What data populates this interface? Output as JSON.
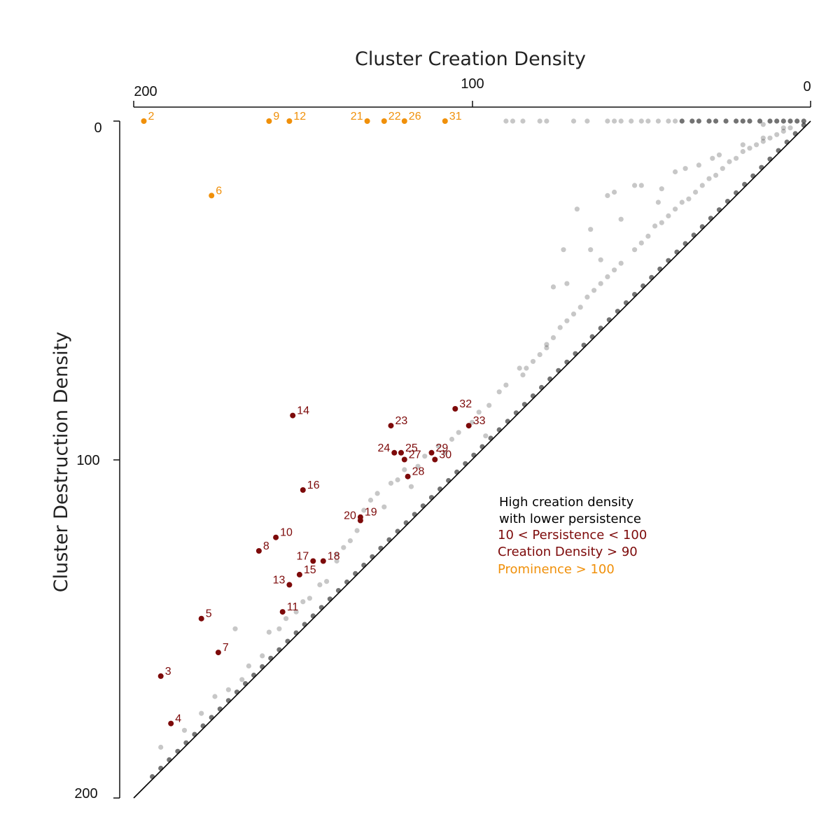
{
  "chart_data": {
    "type": "scatter",
    "title": "Cluster Creation Density",
    "xlabel": "Cluster Creation Density",
    "ylabel": "Cluster Destruction Density",
    "xlim": [
      200,
      0
    ],
    "ylim": [
      0,
      200
    ],
    "x_axis_position": "top",
    "x_ticks": [
      "200",
      "100",
      "0"
    ],
    "y_ticks": [
      "0",
      "100",
      "200"
    ],
    "grid": false,
    "diagonal_line": true,
    "colors": {
      "prominent": "#f0900a",
      "persistent": "#7d0a0a",
      "background": "#000000"
    },
    "legend": {
      "position": "right-middle",
      "header_lines": [
        "High creation density",
        "with lower persistence"
      ],
      "entries": [
        {
          "label": "10 < Persistence < 100",
          "color": "#7d0a0a"
        },
        {
          "label": "Creation Density > 90",
          "color": "#7d0a0a"
        },
        {
          "label": "Prominence > 100",
          "color": "#f0900a"
        }
      ]
    },
    "highlighted_points": [
      {
        "label": "2",
        "x": 197,
        "y": 0,
        "group": "prominent"
      },
      {
        "label": "9",
        "x": 160,
        "y": 0,
        "group": "prominent"
      },
      {
        "label": "12",
        "x": 154,
        "y": 0,
        "group": "prominent"
      },
      {
        "label": "21",
        "x": 131,
        "y": 0,
        "group": "prominent"
      },
      {
        "label": "22",
        "x": 126,
        "y": 0,
        "group": "prominent"
      },
      {
        "label": "26",
        "x": 120,
        "y": 0,
        "group": "prominent"
      },
      {
        "label": "31",
        "x": 108,
        "y": 0,
        "group": "prominent"
      },
      {
        "label": "6",
        "x": 177,
        "y": 22,
        "group": "prominent"
      },
      {
        "label": "14",
        "x": 153,
        "y": 87,
        "group": "persistent"
      },
      {
        "label": "23",
        "x": 124,
        "y": 90,
        "group": "persistent"
      },
      {
        "label": "32",
        "x": 105,
        "y": 85,
        "group": "persistent"
      },
      {
        "label": "33",
        "x": 101,
        "y": 90,
        "group": "persistent"
      },
      {
        "label": "24",
        "x": 123,
        "y": 98,
        "group": "persistent"
      },
      {
        "label": "25",
        "x": 121,
        "y": 98,
        "group": "persistent"
      },
      {
        "label": "27",
        "x": 120,
        "y": 100,
        "group": "persistent"
      },
      {
        "label": "29",
        "x": 112,
        "y": 98,
        "group": "persistent"
      },
      {
        "label": "30",
        "x": 111,
        "y": 100,
        "group": "persistent"
      },
      {
        "label": "28",
        "x": 119,
        "y": 105,
        "group": "persistent"
      },
      {
        "label": "16",
        "x": 150,
        "y": 109,
        "group": "persistent"
      },
      {
        "label": "20",
        "x": 133,
        "y": 118,
        "group": "persistent"
      },
      {
        "label": "19",
        "x": 133,
        "y": 117,
        "group": "persistent"
      },
      {
        "label": "10",
        "x": 158,
        "y": 123,
        "group": "persistent"
      },
      {
        "label": "8",
        "x": 163,
        "y": 127,
        "group": "persistent"
      },
      {
        "label": "17",
        "x": 147,
        "y": 130,
        "group": "persistent"
      },
      {
        "label": "18",
        "x": 144,
        "y": 130,
        "group": "persistent"
      },
      {
        "label": "15",
        "x": 151,
        "y": 134,
        "group": "persistent"
      },
      {
        "label": "13",
        "x": 154,
        "y": 137,
        "group": "persistent"
      },
      {
        "label": "11",
        "x": 156,
        "y": 145,
        "group": "persistent"
      },
      {
        "label": "5",
        "x": 180,
        "y": 147,
        "group": "persistent"
      },
      {
        "label": "7",
        "x": 175,
        "y": 157,
        "group": "persistent"
      },
      {
        "label": "3",
        "x": 192,
        "y": 164,
        "group": "persistent"
      },
      {
        "label": "4",
        "x": 189,
        "y": 178,
        "group": "persistent"
      }
    ],
    "background_points": [
      [
        180,
        175
      ],
      [
        176,
        170
      ],
      [
        172,
        168
      ],
      [
        168,
        165
      ],
      [
        166,
        161
      ],
      [
        162,
        158
      ],
      [
        160,
        151
      ],
      [
        157,
        150
      ],
      [
        152,
        145
      ],
      [
        150,
        142
      ],
      [
        148,
        141
      ],
      [
        145,
        137
      ],
      [
        143,
        136
      ],
      [
        140,
        130
      ],
      [
        138,
        126
      ],
      [
        136,
        124
      ],
      [
        134,
        121
      ],
      [
        132,
        115
      ],
      [
        130,
        112
      ],
      [
        128,
        110
      ],
      [
        124,
        107
      ],
      [
        122,
        106
      ],
      [
        120,
        103
      ],
      [
        116,
        102
      ],
      [
        114,
        99
      ],
      [
        110,
        96
      ],
      [
        106,
        94
      ],
      [
        104,
        92
      ],
      [
        100,
        89
      ],
      [
        98,
        86
      ],
      [
        95,
        84
      ],
      [
        92,
        80
      ],
      [
        90,
        78
      ],
      [
        86,
        73
      ],
      [
        84,
        73
      ],
      [
        82,
        71
      ],
      [
        80,
        69
      ],
      [
        78,
        67
      ],
      [
        76,
        64
      ],
      [
        74,
        61
      ],
      [
        72,
        59
      ],
      [
        70,
        57
      ],
      [
        68,
        55
      ],
      [
        66,
        52
      ],
      [
        64,
        50
      ],
      [
        62,
        48
      ],
      [
        60,
        46
      ],
      [
        58,
        44
      ],
      [
        56,
        42
      ],
      [
        52,
        38
      ],
      [
        50,
        36
      ],
      [
        48,
        34
      ],
      [
        46,
        31
      ],
      [
        44,
        30
      ],
      [
        42,
        28
      ],
      [
        40,
        26
      ],
      [
        38,
        24
      ],
      [
        36,
        23
      ],
      [
        34,
        21
      ],
      [
        32,
        19
      ],
      [
        30,
        17
      ],
      [
        28,
        16
      ],
      [
        26,
        14
      ],
      [
        24,
        12
      ],
      [
        22,
        11
      ],
      [
        20,
        9
      ],
      [
        18,
        8
      ],
      [
        16,
        7
      ],
      [
        14,
        6
      ],
      [
        12,
        5
      ],
      [
        10,
        4
      ],
      [
        8,
        3
      ],
      [
        6,
        2
      ],
      [
        192,
        185
      ],
      [
        185,
        180
      ],
      [
        170,
        150
      ],
      [
        155,
        147
      ],
      [
        140,
        128
      ],
      [
        126,
        114
      ],
      [
        118,
        108
      ],
      [
        108,
        98
      ],
      [
        96,
        93
      ],
      [
        85,
        75
      ],
      [
        78,
        66
      ],
      [
        76,
        49
      ],
      [
        73,
        38
      ],
      [
        72,
        48
      ],
      [
        69,
        26
      ],
      [
        65,
        38
      ],
      [
        65,
        32
      ],
      [
        62,
        41
      ],
      [
        60,
        22
      ],
      [
        58,
        21
      ],
      [
        56,
        29
      ],
      [
        52,
        19
      ],
      [
        50,
        19
      ],
      [
        45,
        24
      ],
      [
        44,
        20
      ],
      [
        40,
        15
      ],
      [
        37,
        14
      ],
      [
        33,
        13
      ],
      [
        29,
        11
      ],
      [
        27,
        10
      ],
      [
        20,
        7
      ],
      [
        14,
        5
      ],
      [
        90,
        0
      ],
      [
        88,
        0
      ],
      [
        85,
        0
      ],
      [
        80,
        0
      ],
      [
        78,
        0
      ],
      [
        70,
        0
      ],
      [
        66,
        0
      ],
      [
        60,
        0
      ],
      [
        58,
        0
      ],
      [
        56,
        0
      ],
      [
        53,
        0
      ],
      [
        50,
        0
      ],
      [
        48,
        0
      ],
      [
        45,
        0
      ],
      [
        42,
        0
      ],
      [
        40,
        0
      ],
      [
        38,
        0
      ],
      [
        35,
        0
      ],
      [
        33,
        0
      ],
      [
        30,
        0
      ],
      [
        28,
        0
      ],
      [
        25,
        0
      ],
      [
        22,
        0
      ],
      [
        20,
        0
      ],
      [
        18,
        0
      ],
      [
        15,
        0
      ],
      [
        12,
        0
      ],
      [
        10,
        0
      ],
      [
        8,
        0
      ],
      [
        6,
        0
      ],
      [
        4,
        0
      ],
      [
        2,
        0
      ],
      [
        14,
        1
      ],
      [
        8,
        2
      ]
    ]
  }
}
